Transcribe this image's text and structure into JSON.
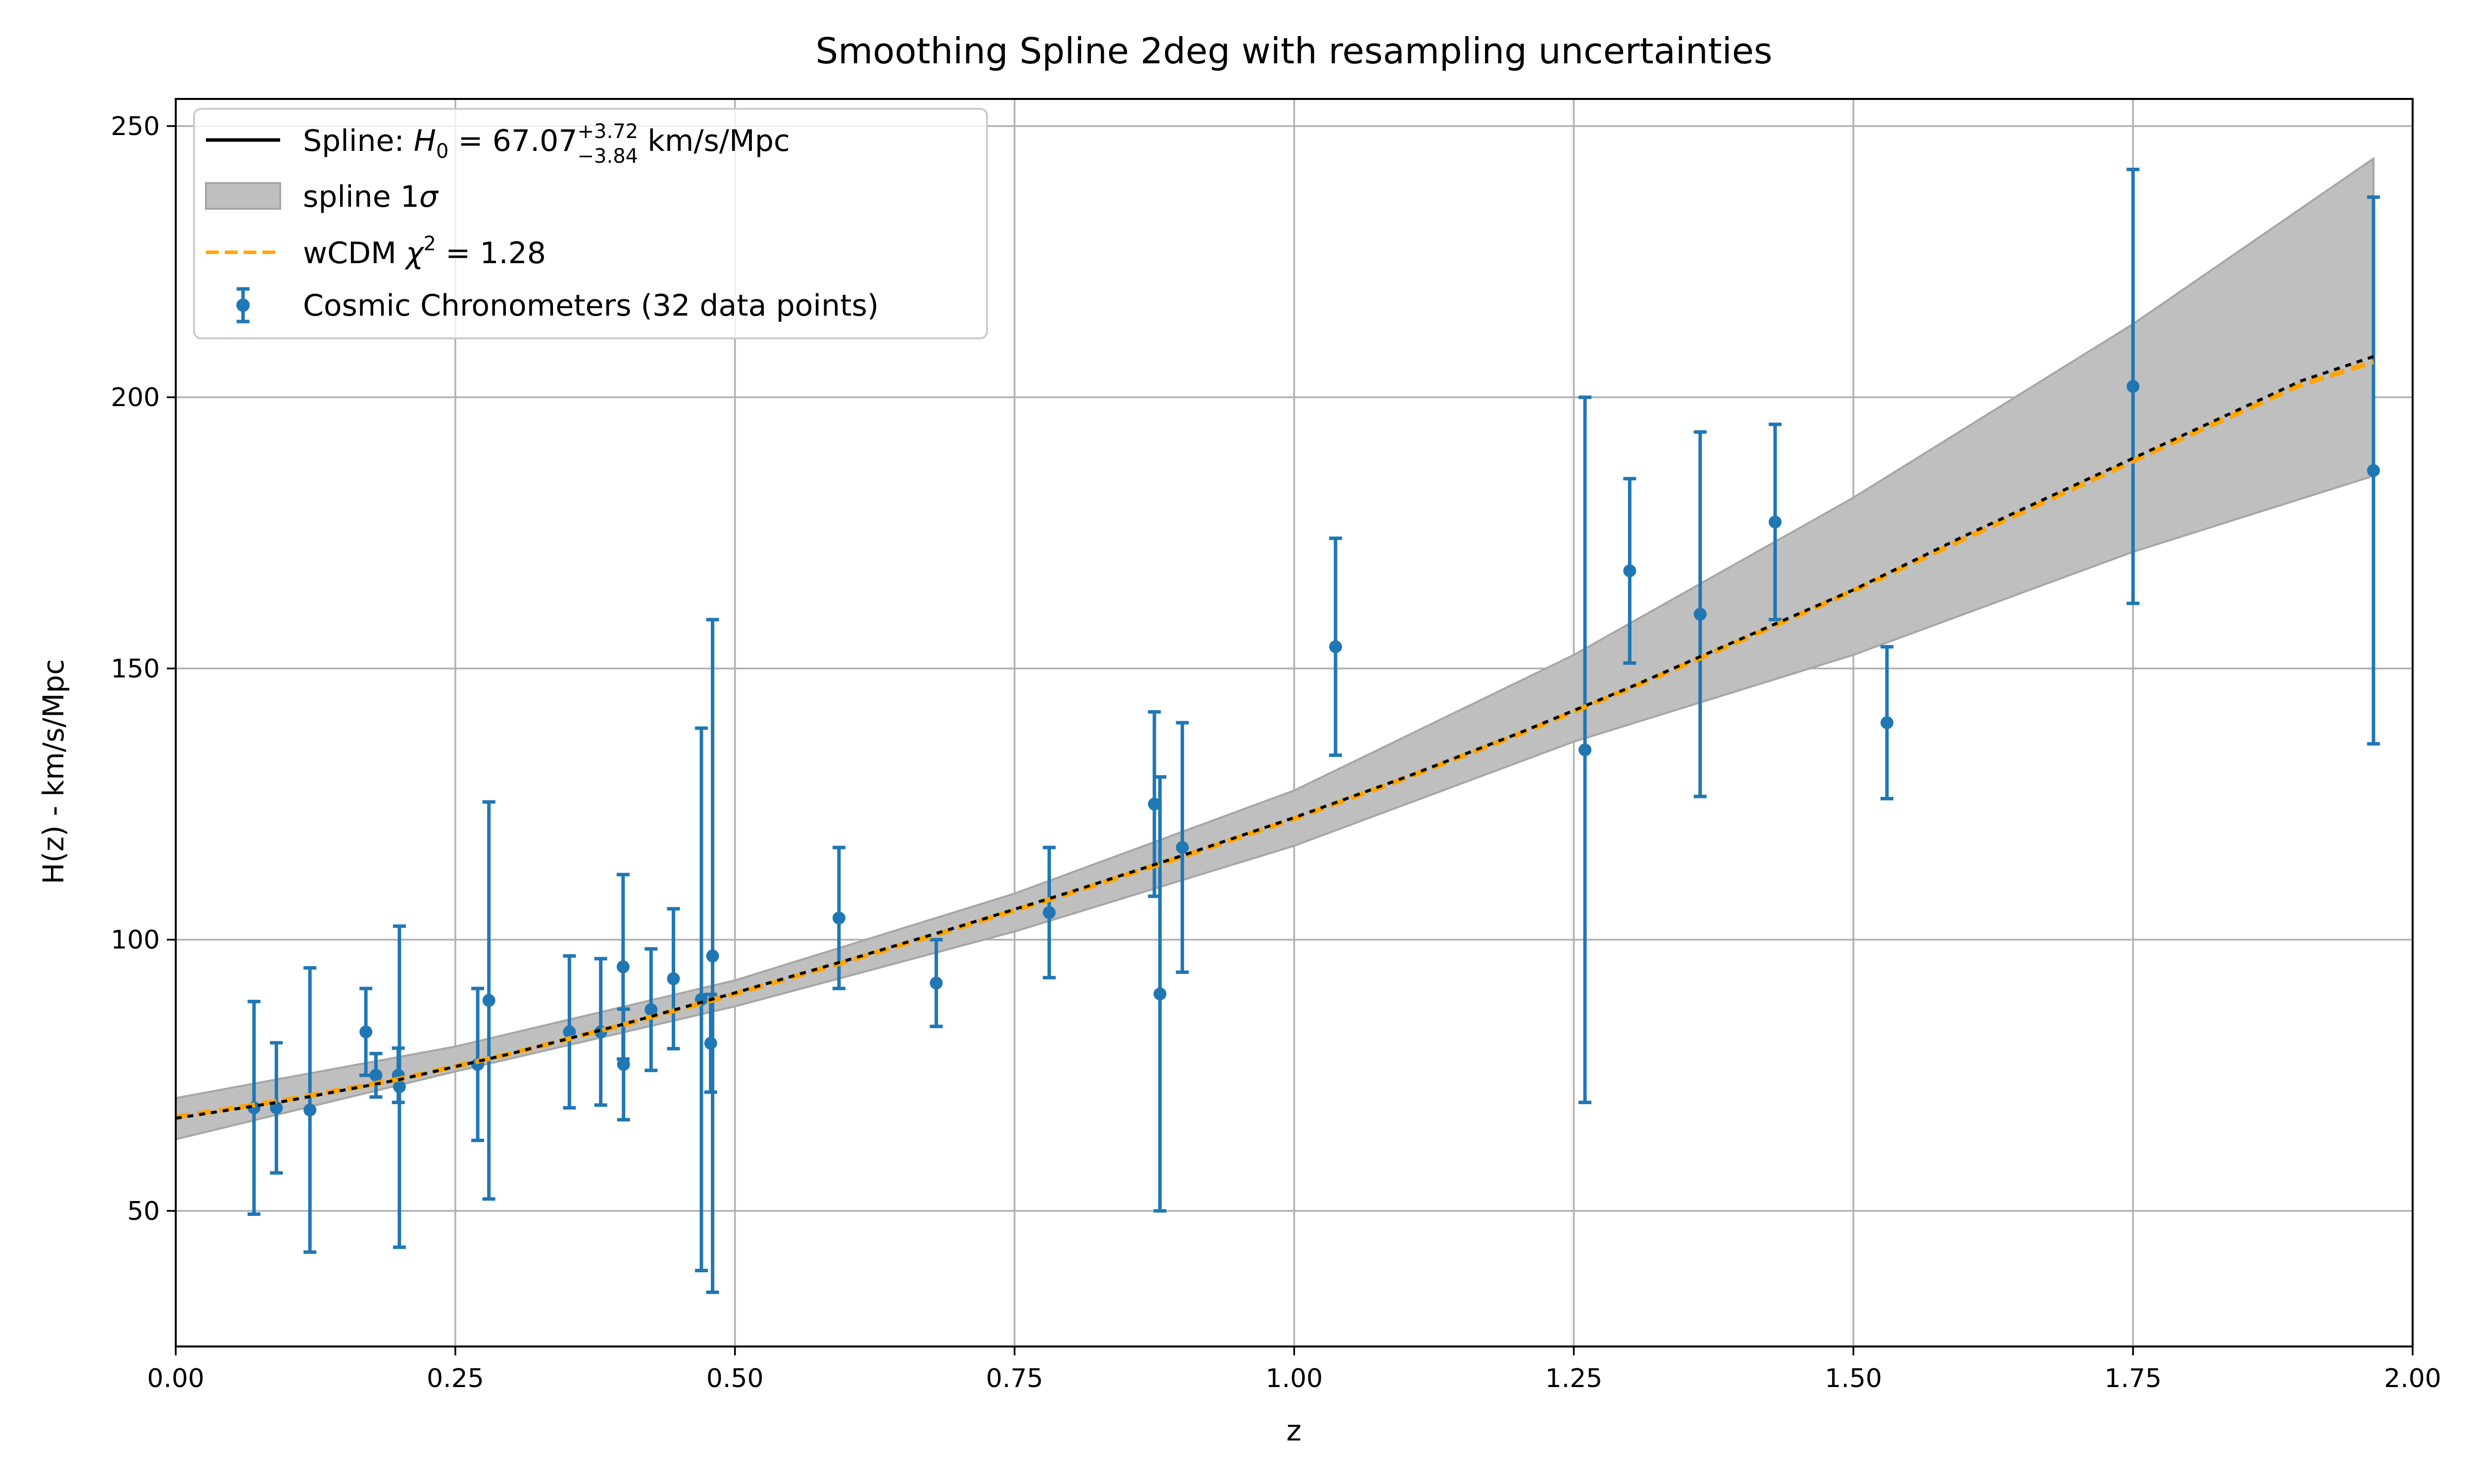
{
  "chart_data": {
    "type": "scatter",
    "title": "Smoothing Spline 2deg with resampling uncertainties",
    "xlabel": "z",
    "ylabel": "H(z) - km/s/Mpc",
    "xlim": [
      0,
      2.0
    ],
    "ylim": [
      25,
      255
    ],
    "x_ticks": [
      0.0,
      0.25,
      0.5,
      0.75,
      1.0,
      1.25,
      1.5,
      1.75,
      2.0
    ],
    "x_tick_labels": [
      "0.00",
      "0.25",
      "0.50",
      "0.75",
      "1.00",
      "1.25",
      "1.50",
      "1.75",
      "2.00"
    ],
    "y_ticks": [
      50,
      100,
      150,
      200,
      250
    ],
    "y_tick_labels": [
      "50",
      "100",
      "150",
      "200",
      "250"
    ],
    "grid": true,
    "legend_position": "top-left",
    "legend": {
      "spline": {
        "prefix": "Spline: ",
        "symbol": "H",
        "subscript": "0",
        "equals": " = 67.07",
        "sup": "+3.72",
        "sub": "−3.84",
        "suffix": " km/s/Mpc"
      },
      "band": {
        "prefix": "spline 1",
        "symbol": "σ"
      },
      "wcdm": {
        "prefix": "wCDM ",
        "symbol": "χ",
        "sup": "2",
        "suffix": " = 1.28"
      },
      "data": {
        "label": "Cosmic Chronometers (32 data points)"
      }
    },
    "colors": {
      "data": "#1f77b4",
      "spline": "#000000",
      "wcdm": "#ffa500",
      "band_fill": "#bfbfbf",
      "band_edge": "#a6a6a6",
      "grid": "#b0b0b0"
    },
    "data_points": {
      "x": [
        0.07,
        0.09,
        0.12,
        0.17,
        0.179,
        0.199,
        0.2,
        0.27,
        0.28,
        0.352,
        0.38,
        0.4,
        0.4004,
        0.425,
        0.445,
        0.47,
        0.4783,
        0.48,
        0.593,
        0.68,
        0.781,
        0.875,
        0.88,
        0.9,
        1.037,
        1.26,
        1.3,
        1.363,
        1.43,
        1.53,
        1.75,
        1.965
      ],
      "y": [
        69,
        69,
        68.6,
        83,
        75,
        75,
        72.9,
        77,
        88.8,
        83,
        83,
        95,
        77,
        87.1,
        92.8,
        89,
        80.9,
        97,
        104,
        92,
        105,
        125,
        90,
        117,
        154,
        135,
        168,
        160,
        177,
        140,
        202,
        186.5
      ],
      "err": [
        19.6,
        12,
        26.2,
        8,
        4,
        5,
        29.6,
        14,
        36.6,
        14,
        13.5,
        17,
        10.2,
        11.2,
        12.9,
        50,
        9,
        62,
        13,
        8,
        12,
        17,
        40,
        23,
        20,
        65,
        17,
        33.6,
        18,
        14,
        40,
        50.4
      ]
    },
    "spline_curve": {
      "x": [
        0.0,
        0.1,
        0.2,
        0.3,
        0.4,
        0.5,
        0.6,
        0.7,
        0.8,
        0.9,
        1.0,
        1.1,
        1.2,
        1.3,
        1.4,
        1.5,
        1.6,
        1.7,
        1.8,
        1.9,
        1.965
      ],
      "y": [
        67.07,
        70.3,
        74.2,
        79.0,
        84.4,
        90.2,
        96.2,
        102.4,
        108.8,
        115.5,
        122.5,
        130.0,
        138.0,
        146.5,
        155.5,
        164.5,
        174.5,
        184.0,
        193.5,
        203.0,
        207.5
      ]
    },
    "wcdm_curve": {
      "x": [
        0.0,
        0.1,
        0.2,
        0.3,
        0.4,
        0.5,
        0.6,
        0.7,
        0.8,
        0.9,
        1.0,
        1.1,
        1.2,
        1.3,
        1.4,
        1.5,
        1.6,
        1.7,
        1.8,
        1.9,
        1.965
      ],
      "y": [
        67.3,
        70.5,
        74.3,
        79.0,
        84.3,
        90.0,
        96.0,
        102.2,
        108.6,
        115.3,
        122.3,
        129.8,
        137.8,
        146.3,
        155.2,
        164.3,
        174.0,
        183.5,
        193.0,
        202.3,
        206.5
      ]
    },
    "band": {
      "x": [
        0.0,
        0.25,
        0.5,
        0.75,
        1.0,
        1.25,
        1.5,
        1.75,
        1.965
      ],
      "upper": [
        70.8,
        80.3,
        92.5,
        108.5,
        127.5,
        152.5,
        181.5,
        213.5,
        244.0
      ],
      "lower": [
        63.2,
        75.7,
        87.7,
        101.5,
        117.3,
        136.5,
        152.5,
        171.5,
        185.5
      ]
    }
  }
}
